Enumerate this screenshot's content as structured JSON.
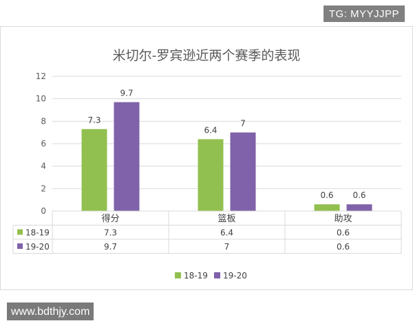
{
  "overlay": {
    "tag": "TG: MYYJJPP",
    "url": "www.bdthjy.com"
  },
  "chart_data": {
    "type": "bar",
    "title": "米切尔-罗宾逊近两个赛季的表现",
    "categories": [
      "得分",
      "篮板",
      "助攻"
    ],
    "series": [
      {
        "name": "18-19",
        "values": [
          7.3,
          6.4,
          0.6
        ],
        "color": "#92c050",
        "labels": [
          "7.3",
          "6.4",
          "0.6"
        ]
      },
      {
        "name": "19-20",
        "values": [
          9.7,
          7,
          0.6
        ],
        "color": "#7f62a9",
        "labels": [
          "9.7",
          "7",
          "0.6"
        ]
      }
    ],
    "ylim": [
      0,
      12
    ],
    "yticks": [
      "0",
      "2",
      "4",
      "6",
      "8",
      "10",
      "12"
    ],
    "grid": true,
    "data_table": true,
    "legend": "bottom"
  }
}
